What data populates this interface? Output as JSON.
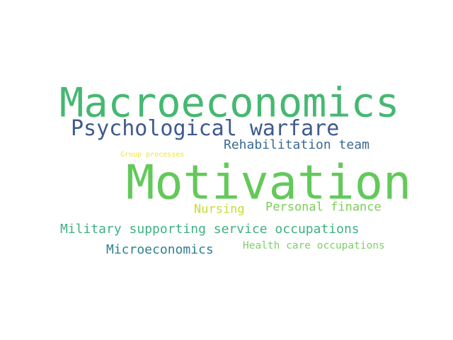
{
  "word_cloud": {
    "background": "#ffffff",
    "words": [
      {
        "text": "Macroeconomics",
        "color": "#46b872"
      },
      {
        "text": "Motivation",
        "color": "#63c95a"
      },
      {
        "text": "Psychological warfare",
        "color": "#3e5a8f"
      },
      {
        "text": "Rehabilitation team",
        "color": "#3a6b93"
      },
      {
        "text": "Personal finance",
        "color": "#7dcd5a"
      },
      {
        "text": "Nursing",
        "color": "#c3dc3a"
      },
      {
        "text": "Military supporting service occupations",
        "color": "#3fb181"
      },
      {
        "text": "Microeconomics",
        "color": "#2f8090"
      },
      {
        "text": "Health care occupations",
        "color": "#7dd06a"
      },
      {
        "text": "Group processes",
        "color": "#f2e33a"
      }
    ]
  }
}
